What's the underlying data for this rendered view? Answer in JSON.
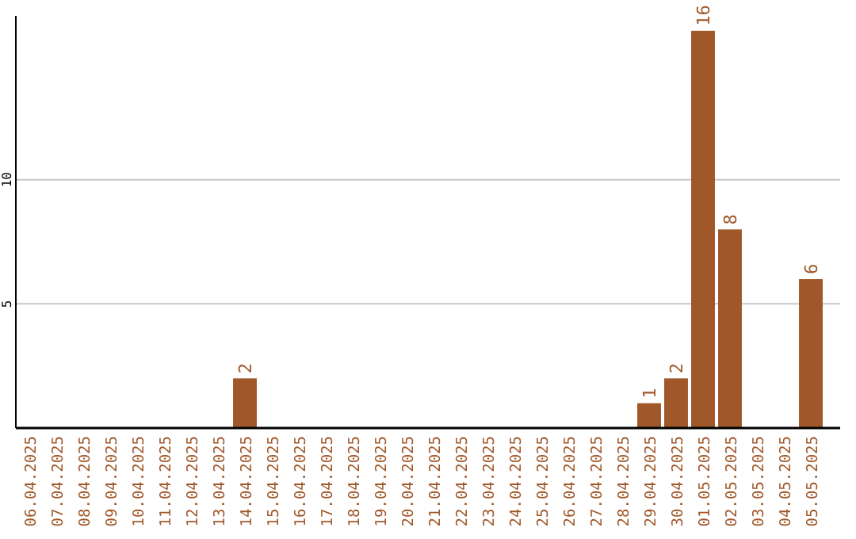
{
  "chart_data": {
    "type": "bar",
    "categories": [
      "06.04.2025",
      "07.04.2025",
      "08.04.2025",
      "09.04.2025",
      "10.04.2025",
      "11.04.2025",
      "12.04.2025",
      "13.04.2025",
      "14.04.2025",
      "15.04.2025",
      "16.04.2025",
      "17.04.2025",
      "18.04.2025",
      "19.04.2025",
      "20.04.2025",
      "21.04.2025",
      "22.04.2025",
      "23.04.2025",
      "24.04.2025",
      "25.04.2025",
      "26.04.2025",
      "27.04.2025",
      "28.04.2025",
      "29.04.2025",
      "30.04.2025",
      "01.05.2025",
      "02.05.2025",
      "03.05.2025",
      "04.05.2025",
      "05.05.2025"
    ],
    "values": [
      0,
      0,
      0,
      0,
      0,
      0,
      0,
      0,
      2,
      0,
      0,
      0,
      0,
      0,
      0,
      0,
      0,
      0,
      0,
      0,
      0,
      0,
      0,
      1,
      2,
      16,
      8,
      0,
      0,
      6
    ],
    "value_labels": [
      null,
      null,
      null,
      null,
      null,
      null,
      null,
      null,
      "2",
      null,
      null,
      null,
      null,
      null,
      null,
      null,
      null,
      null,
      null,
      null,
      null,
      null,
      null,
      "1",
      "2",
      "16",
      "8",
      null,
      null,
      "6"
    ],
    "color": "#a0582a",
    "ylim": [
      0,
      16.6
    ],
    "yticks": [
      5,
      10
    ],
    "grid": "y"
  }
}
